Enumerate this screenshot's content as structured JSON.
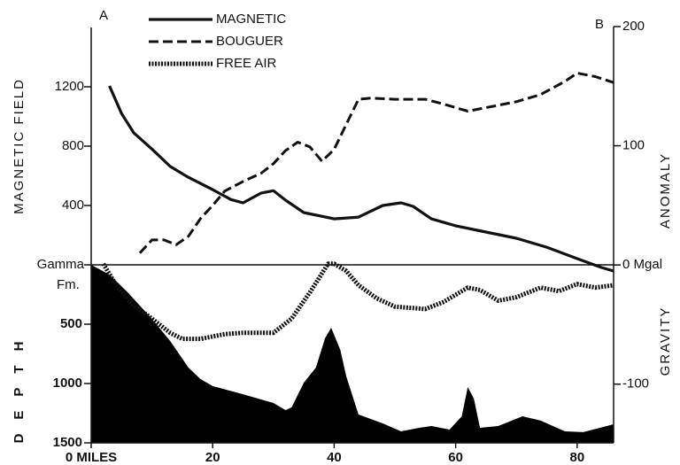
{
  "chart_data": {
    "type": "line",
    "corner_labels": [
      "A",
      "B"
    ],
    "ylabel": "MAGNETIC FIELD",
    "y2label": "ANOMALY",
    "y2label_lower": "GRAVITY",
    "depth_label": "DEPTH",
    "annotation": "Fm.",
    "xlim": [
      0,
      86
    ],
    "xticks": [
      {
        "value": 0,
        "label": "0 MILES"
      },
      20,
      40,
      60,
      80
    ],
    "ylim": [
      0,
      1600
    ],
    "yticks": [
      {
        "value": 0,
        "label": "Gamma"
      },
      400,
      800,
      1200
    ],
    "y2lim": [
      -150,
      200
    ],
    "y2ticks": [
      {
        "value": 0,
        "label": "0 Mgal"
      },
      100,
      200,
      -100
    ],
    "depth_lim": [
      0,
      1500
    ],
    "depth_ticks": [
      500,
      1000,
      1500
    ],
    "series": [
      {
        "name": "MAGNETIC",
        "color": "#111111",
        "style": "solid",
        "axis": "y",
        "x": [
          3,
          5,
          7,
          10,
          13,
          16,
          20,
          23,
          25,
          28,
          30,
          32,
          35,
          40,
          44,
          48,
          51,
          53,
          56,
          60,
          65,
          70,
          75,
          80,
          84,
          86
        ],
        "values": [
          1206,
          1020,
          890,
          780,
          663,
          590,
          507,
          440,
          418,
          484,
          500,
          436,
          352,
          310,
          322,
          400,
          418,
          394,
          310,
          263,
          221,
          179,
          119,
          42,
          -18,
          -42
        ]
      },
      {
        "name": "BOUGUER",
        "color": "#111111",
        "style": "dashed",
        "axis": "y2",
        "x": [
          8,
          10,
          12,
          14,
          16,
          18,
          20,
          22,
          25,
          28,
          30,
          32,
          34,
          36,
          38,
          40,
          42,
          44,
          46,
          50,
          55,
          58,
          62,
          66,
          70,
          74,
          78,
          80,
          83,
          86
        ],
        "values": [
          10,
          21,
          21,
          17,
          24,
          39,
          50,
          62,
          70,
          77,
          85,
          96,
          103,
          99,
          87,
          97,
          118,
          139,
          140,
          139,
          139,
          135,
          129,
          133,
          137,
          143,
          154,
          161,
          158,
          153
        ]
      },
      {
        "name": "FREE AIR",
        "color": "#111111",
        "style": "dotted",
        "axis": "y2",
        "x": [
          2,
          4,
          7,
          10,
          13,
          15,
          18,
          22,
          25,
          30,
          33,
          36,
          39,
          40,
          42,
          44,
          47,
          50,
          55,
          58,
          62,
          64,
          67,
          70,
          74,
          77,
          80,
          83,
          86
        ],
        "values": [
          1,
          -16,
          -34,
          -45,
          -57,
          -62,
          -62,
          -58,
          -57,
          -57,
          -45,
          -23,
          1,
          1,
          -5,
          -17,
          -28,
          -35,
          -37,
          -31,
          -19,
          -21,
          -30,
          -27,
          -19,
          -22,
          -16,
          -19,
          -17
        ]
      },
      {
        "color": "#000000",
        "style": "area",
        "axis": "depth",
        "x": [
          0,
          3,
          6,
          10,
          13,
          16,
          18,
          20,
          25,
          30,
          32,
          33,
          35,
          37,
          38.5,
          39.5,
          41,
          42,
          44,
          48,
          51,
          54,
          56,
          59,
          61,
          62,
          63,
          64,
          67,
          71,
          74,
          78,
          81,
          86
        ],
        "values": [
          0,
          82,
          231,
          455,
          642,
          866,
          963,
          1022,
          1090,
          1164,
          1224,
          1201,
          993,
          866,
          619,
          530,
          716,
          940,
          1261,
          1336,
          1403,
          1373,
          1358,
          1388,
          1276,
          1030,
          1127,
          1373,
          1358,
          1276,
          1313,
          1403,
          1410,
          1343
        ]
      }
    ]
  }
}
